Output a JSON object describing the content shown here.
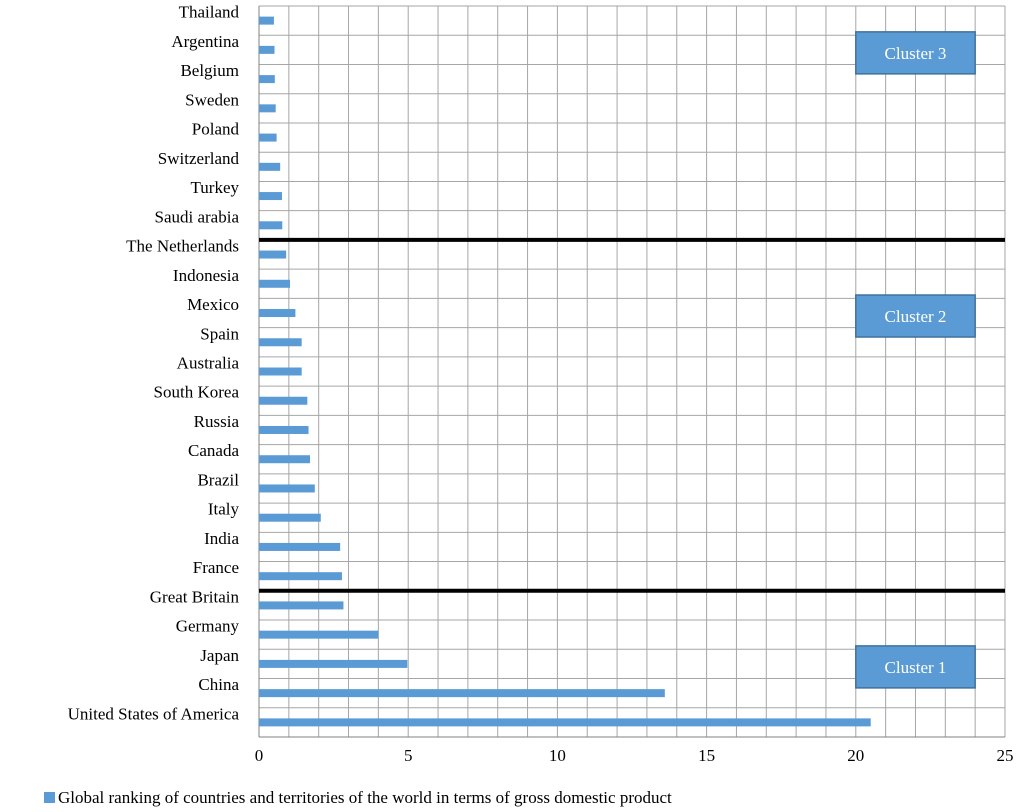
{
  "chart_data": {
    "type": "bar",
    "orientation": "horizontal",
    "categories": [
      "United States of America",
      "China",
      "Japan",
      "Germany",
      "Great Britain",
      "France",
      "India",
      "Italy",
      "Brazil",
      "Canada",
      "Russia",
      "South Korea",
      "Australia",
      "Spain",
      "Mexico",
      "Indonesia",
      "The Netherlands",
      "Saudi arabia",
      "Turkey",
      "Switzerland",
      "Poland",
      "Sweden",
      "Belgium",
      "Argentina",
      "Thailand"
    ],
    "series": [
      {
        "name": "Global ranking of countries and territories of the world in terms of gross domestic product",
        "color": "#5b9bd5",
        "values": [
          20.5,
          13.6,
          4.97,
          4.0,
          2.83,
          2.78,
          2.72,
          2.07,
          1.87,
          1.71,
          1.66,
          1.62,
          1.43,
          1.43,
          1.22,
          1.04,
          0.91,
          0.78,
          0.77,
          0.71,
          0.59,
          0.56,
          0.53,
          0.52,
          0.5
        ]
      }
    ],
    "xlim": [
      0,
      25
    ],
    "x_ticks": [
      "0",
      "5",
      "10",
      "15",
      "20",
      "25"
    ],
    "minor_grid_step": 1,
    "grid": true,
    "legend_position": "bottom-left",
    "separators_after": [
      "Great Britain",
      "The Netherlands"
    ],
    "clusters": [
      {
        "label": "Cluster 1",
        "anchor": "Japan"
      },
      {
        "label": "Cluster 2",
        "anchor": "Mexico"
      },
      {
        "label": "Cluster 3",
        "anchor": "Argentina"
      }
    ],
    "xlabel": "",
    "ylabel": "",
    "title": ""
  }
}
